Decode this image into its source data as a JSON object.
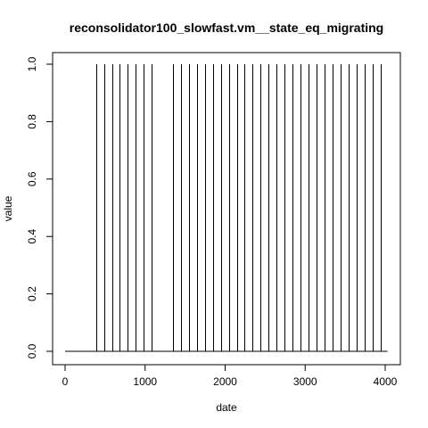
{
  "chart_data": {
    "type": "line",
    "title": "reconsolidator100_slowfast.vm__state_eq_migrating",
    "xlabel": "date",
    "ylabel": "value",
    "xlim": [
      0,
      4000
    ],
    "ylim": [
      0,
      1
    ],
    "x_ticks": [
      0,
      1000,
      2000,
      3000,
      4000
    ],
    "y_ticks": [
      "0.0",
      "0.2",
      "0.4",
      "0.6",
      "0.8",
      "1.0"
    ],
    "baseline_range": [
      0,
      4030
    ],
    "spikes": [
      {
        "x": 385,
        "value": 1
      },
      {
        "x": 485,
        "value": 1
      },
      {
        "x": 585,
        "value": 1
      },
      {
        "x": 685,
        "value": 1
      },
      {
        "x": 785,
        "value": 1
      },
      {
        "x": 885,
        "value": 1
      },
      {
        "x": 985,
        "value": 1
      },
      {
        "x": 1085,
        "value": 1
      },
      {
        "x": 1345,
        "value": 1
      },
      {
        "x": 1445,
        "value": 1
      },
      {
        "x": 1545,
        "value": 1
      },
      {
        "x": 1645,
        "value": 1
      },
      {
        "x": 1745,
        "value": 1
      },
      {
        "x": 1845,
        "value": 1
      },
      {
        "x": 1945,
        "value": 1
      },
      {
        "x": 2045,
        "value": 1
      },
      {
        "x": 2145,
        "value": 1
      },
      {
        "x": 2245,
        "value": 1
      },
      {
        "x": 2345,
        "value": 1
      },
      {
        "x": 2445,
        "value": 1
      },
      {
        "x": 2545,
        "value": 1
      },
      {
        "x": 2645,
        "value": 1
      },
      {
        "x": 2745,
        "value": 1
      },
      {
        "x": 2845,
        "value": 1
      },
      {
        "x": 2945,
        "value": 1
      },
      {
        "x": 3045,
        "value": 1
      },
      {
        "x": 3145,
        "value": 1
      },
      {
        "x": 3245,
        "value": 1
      },
      {
        "x": 3345,
        "value": 1
      },
      {
        "x": 3445,
        "value": 1
      },
      {
        "x": 3545,
        "value": 1
      },
      {
        "x": 3645,
        "value": 1
      },
      {
        "x": 3745,
        "value": 1
      },
      {
        "x": 3845,
        "value": 1
      },
      {
        "x": 3945,
        "value": 1
      }
    ],
    "grid": false,
    "legend": "none"
  }
}
